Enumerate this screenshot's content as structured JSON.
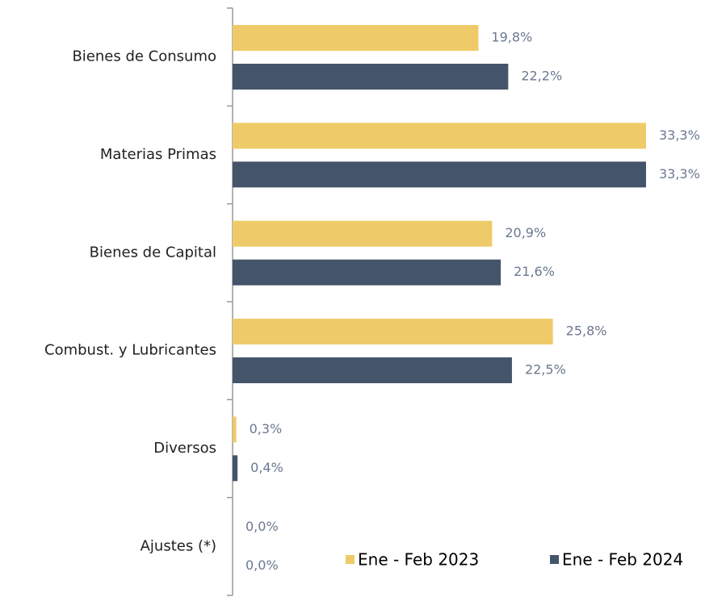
{
  "chart_data": {
    "type": "bar",
    "orientation": "horizontal",
    "categories": [
      "Bienes de Consumo",
      "Materias Primas",
      "Bienes de Capital",
      "Combust. y Lubricantes",
      "Diversos",
      "Ajustes (*)"
    ],
    "series": [
      {
        "name": "Ene - Feb 2023",
        "color": "#EECB68",
        "values": [
          19.8,
          33.3,
          20.9,
          25.8,
          0.3,
          0.0
        ],
        "value_labels": [
          "19,8%",
          "33,3%",
          "20,9%",
          "25,8%",
          "0,3%",
          "0,0%"
        ]
      },
      {
        "name": "Ene - Feb 2024",
        "color": "#44546A",
        "values": [
          22.2,
          33.3,
          21.6,
          22.5,
          0.4,
          0.0
        ],
        "value_labels": [
          "22,2%",
          "33,3%",
          "21,6%",
          "22,5%",
          "0,4%",
          "0,0%"
        ]
      }
    ],
    "legend": "bottom-right"
  }
}
